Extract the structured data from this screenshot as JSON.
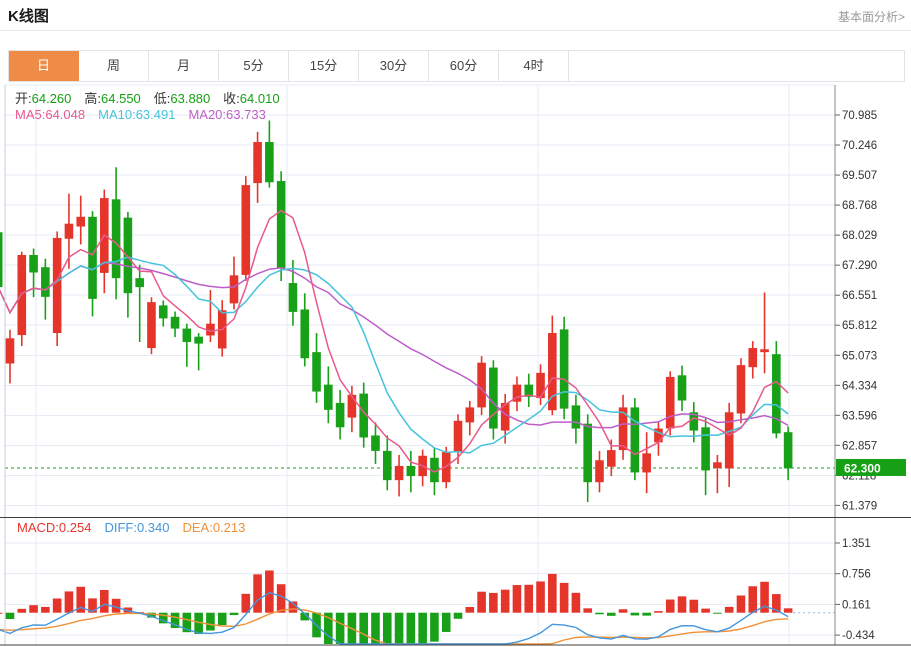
{
  "header": {
    "title": "K线图",
    "link": "基本面分析>"
  },
  "tabs": {
    "active_index": 0,
    "items": [
      "日",
      "周",
      "月",
      "5分",
      "15分",
      "30分",
      "60分",
      "4时"
    ],
    "names": [
      "day",
      "week",
      "month",
      "5min",
      "15min",
      "30min",
      "60min",
      "4hour"
    ]
  },
  "ohlc_legend": [
    {
      "name": "ohlc-open",
      "label": "开:",
      "value": "64.260"
    },
    {
      "name": "ohlc-high",
      "label": "高:",
      "value": "64.550"
    },
    {
      "name": "ohlc-low",
      "label": "低:",
      "value": "63.880"
    },
    {
      "name": "ohlc-close",
      "label": "收:",
      "value": "64.010"
    }
  ],
  "ma_legend": [
    {
      "name": "ma5-legend",
      "label": "MA5:",
      "value": "64.048",
      "color": "#e8598c"
    },
    {
      "name": "ma10-legend",
      "label": "MA10:",
      "value": "63.491",
      "color": "#45c2dc"
    },
    {
      "name": "ma20-legend",
      "label": "MA20:",
      "value": "63.733",
      "color": "#bd5ec9"
    }
  ],
  "macd_legend": [
    {
      "name": "macd-legend",
      "label": "MACD:",
      "value": "0.254",
      "color": "#e5352b"
    },
    {
      "name": "diff-legend",
      "label": "DIFF:",
      "value": "0.340",
      "color": "#4496dd"
    },
    {
      "name": "dea-legend",
      "label": "DEA:",
      "value": "0.213",
      "color": "#f09138"
    }
  ],
  "latest_price_badge": {
    "label": "62.300"
  },
  "colors": {
    "up": "#e5352b",
    "down": "#18a118",
    "ma5": "#e8598c",
    "ma10": "#45c2dc",
    "ma20": "#bd5ec9",
    "diff": "#4496dd",
    "dea": "#f09138",
    "grid": "#e5ecf4",
    "axis_text": "#333333",
    "price_line": "#16a016",
    "badge_bg": "#16a016",
    "separator": "#3f3f3f",
    "axis_line": "#8a8a8a",
    "left_border": "#c6d0da"
  },
  "chart_data": {
    "type": "candlestick",
    "title": "K线图 daily candlesticks with MA5/MA10/MA20 overlays and MACD sub-chart",
    "legend_position": "top-left",
    "grid": true,
    "price_axis_ticks": [
      70.985,
      70.246,
      69.507,
      68.768,
      68.029,
      67.29,
      66.551,
      65.812,
      65.073,
      64.334,
      63.596,
      62.857,
      62.118,
      61.379
    ],
    "macd_axis_ticks": [
      1.351,
      0.756,
      0.161,
      -0.434
    ],
    "latest_price": 62.3,
    "ohlc_display": {
      "open": 64.26,
      "high": 64.55,
      "low": 63.88,
      "close": 64.01
    },
    "indicator_values": {
      "MA5": 64.048,
      "MA10": 63.491,
      "MA20": 63.733,
      "MACD": 0.254,
      "DIFF": 0.34,
      "DEA": 0.213
    },
    "candles": [
      [
        68.1,
        68.2,
        66.6,
        66.75
      ],
      [
        64.87,
        65.7,
        64.38,
        65.49
      ],
      [
        65.57,
        67.62,
        65.3,
        67.54
      ],
      [
        67.54,
        67.7,
        66.5,
        67.11
      ],
      [
        67.24,
        67.45,
        65.95,
        66.51
      ],
      [
        65.62,
        68.12,
        65.3,
        67.96
      ],
      [
        67.94,
        69.05,
        67.2,
        68.31
      ],
      [
        68.24,
        69.0,
        67.8,
        68.48
      ],
      [
        68.48,
        68.62,
        66.03,
        66.46
      ],
      [
        67.1,
        69.15,
        66.6,
        68.94
      ],
      [
        68.91,
        69.7,
        66.45,
        66.97
      ],
      [
        68.46,
        68.6,
        66.0,
        66.6
      ],
      [
        66.97,
        67.3,
        65.4,
        66.75
      ],
      [
        65.25,
        66.5,
        65.1,
        66.38
      ],
      [
        66.3,
        66.42,
        65.78,
        65.98
      ],
      [
        66.02,
        66.15,
        65.52,
        65.73
      ],
      [
        65.73,
        65.85,
        64.79,
        65.4
      ],
      [
        65.53,
        65.62,
        64.7,
        65.36
      ],
      [
        65.56,
        66.68,
        65.4,
        65.85
      ],
      [
        65.24,
        66.43,
        65.04,
        66.18
      ],
      [
        66.35,
        67.5,
        66.2,
        67.04
      ],
      [
        67.05,
        69.48,
        66.9,
        69.26
      ],
      [
        69.31,
        70.57,
        68.82,
        70.32
      ],
      [
        70.32,
        70.85,
        69.2,
        69.33
      ],
      [
        69.36,
        69.6,
        66.9,
        67.22
      ],
      [
        66.85,
        67.42,
        65.8,
        66.14
      ],
      [
        66.2,
        66.6,
        64.8,
        65.0
      ],
      [
        65.15,
        65.62,
        63.9,
        64.18
      ],
      [
        64.35,
        64.8,
        63.4,
        63.73
      ],
      [
        63.9,
        64.22,
        63.0,
        63.3
      ],
      [
        63.54,
        64.32,
        63.18,
        64.1
      ],
      [
        64.13,
        64.4,
        62.8,
        63.05
      ],
      [
        63.1,
        63.42,
        62.4,
        62.72
      ],
      [
        62.72,
        63.1,
        61.75,
        62.0
      ],
      [
        62.0,
        62.62,
        61.6,
        62.35
      ],
      [
        62.35,
        62.72,
        61.7,
        62.1
      ],
      [
        62.1,
        62.75,
        61.85,
        62.6
      ],
      [
        62.55,
        62.8,
        61.63,
        61.95
      ],
      [
        61.95,
        62.82,
        61.8,
        62.69
      ],
      [
        62.69,
        63.62,
        62.4,
        63.46
      ],
      [
        63.42,
        63.95,
        63.1,
        63.79
      ],
      [
        63.79,
        65.05,
        63.6,
        64.89
      ],
      [
        64.77,
        64.95,
        63.0,
        63.27
      ],
      [
        63.22,
        64.12,
        62.9,
        63.9
      ],
      [
        63.93,
        64.55,
        63.7,
        64.35
      ],
      [
        64.35,
        64.62,
        63.8,
        64.05
      ],
      [
        64.02,
        64.85,
        63.85,
        64.64
      ],
      [
        63.72,
        66.05,
        63.6,
        65.62
      ],
      [
        65.71,
        66.02,
        63.5,
        63.76
      ],
      [
        63.84,
        64.1,
        62.9,
        63.27
      ],
      [
        63.39,
        63.62,
        61.46,
        61.95
      ],
      [
        61.95,
        62.72,
        61.7,
        62.49
      ],
      [
        62.33,
        63.0,
        62.1,
        62.74
      ],
      [
        62.74,
        64.1,
        62.5,
        63.79
      ],
      [
        63.79,
        64.02,
        62.0,
        62.19
      ],
      [
        62.19,
        63.18,
        61.68,
        62.66
      ],
      [
        62.93,
        63.42,
        62.6,
        63.27
      ],
      [
        63.27,
        64.68,
        63.1,
        64.54
      ],
      [
        64.58,
        64.82,
        63.7,
        63.96
      ],
      [
        63.67,
        63.92,
        62.93,
        63.22
      ],
      [
        63.3,
        63.52,
        61.63,
        62.24
      ],
      [
        62.3,
        62.62,
        61.68,
        62.44
      ],
      [
        62.29,
        63.9,
        61.83,
        63.67
      ],
      [
        63.64,
        65.0,
        63.4,
        64.83
      ],
      [
        64.78,
        65.42,
        64.5,
        65.25
      ],
      [
        65.15,
        66.62,
        64.63,
        65.22
      ],
      [
        65.1,
        65.42,
        63.03,
        63.15
      ],
      [
        63.18,
        63.32,
        62.0,
        62.29
      ]
    ]
  }
}
